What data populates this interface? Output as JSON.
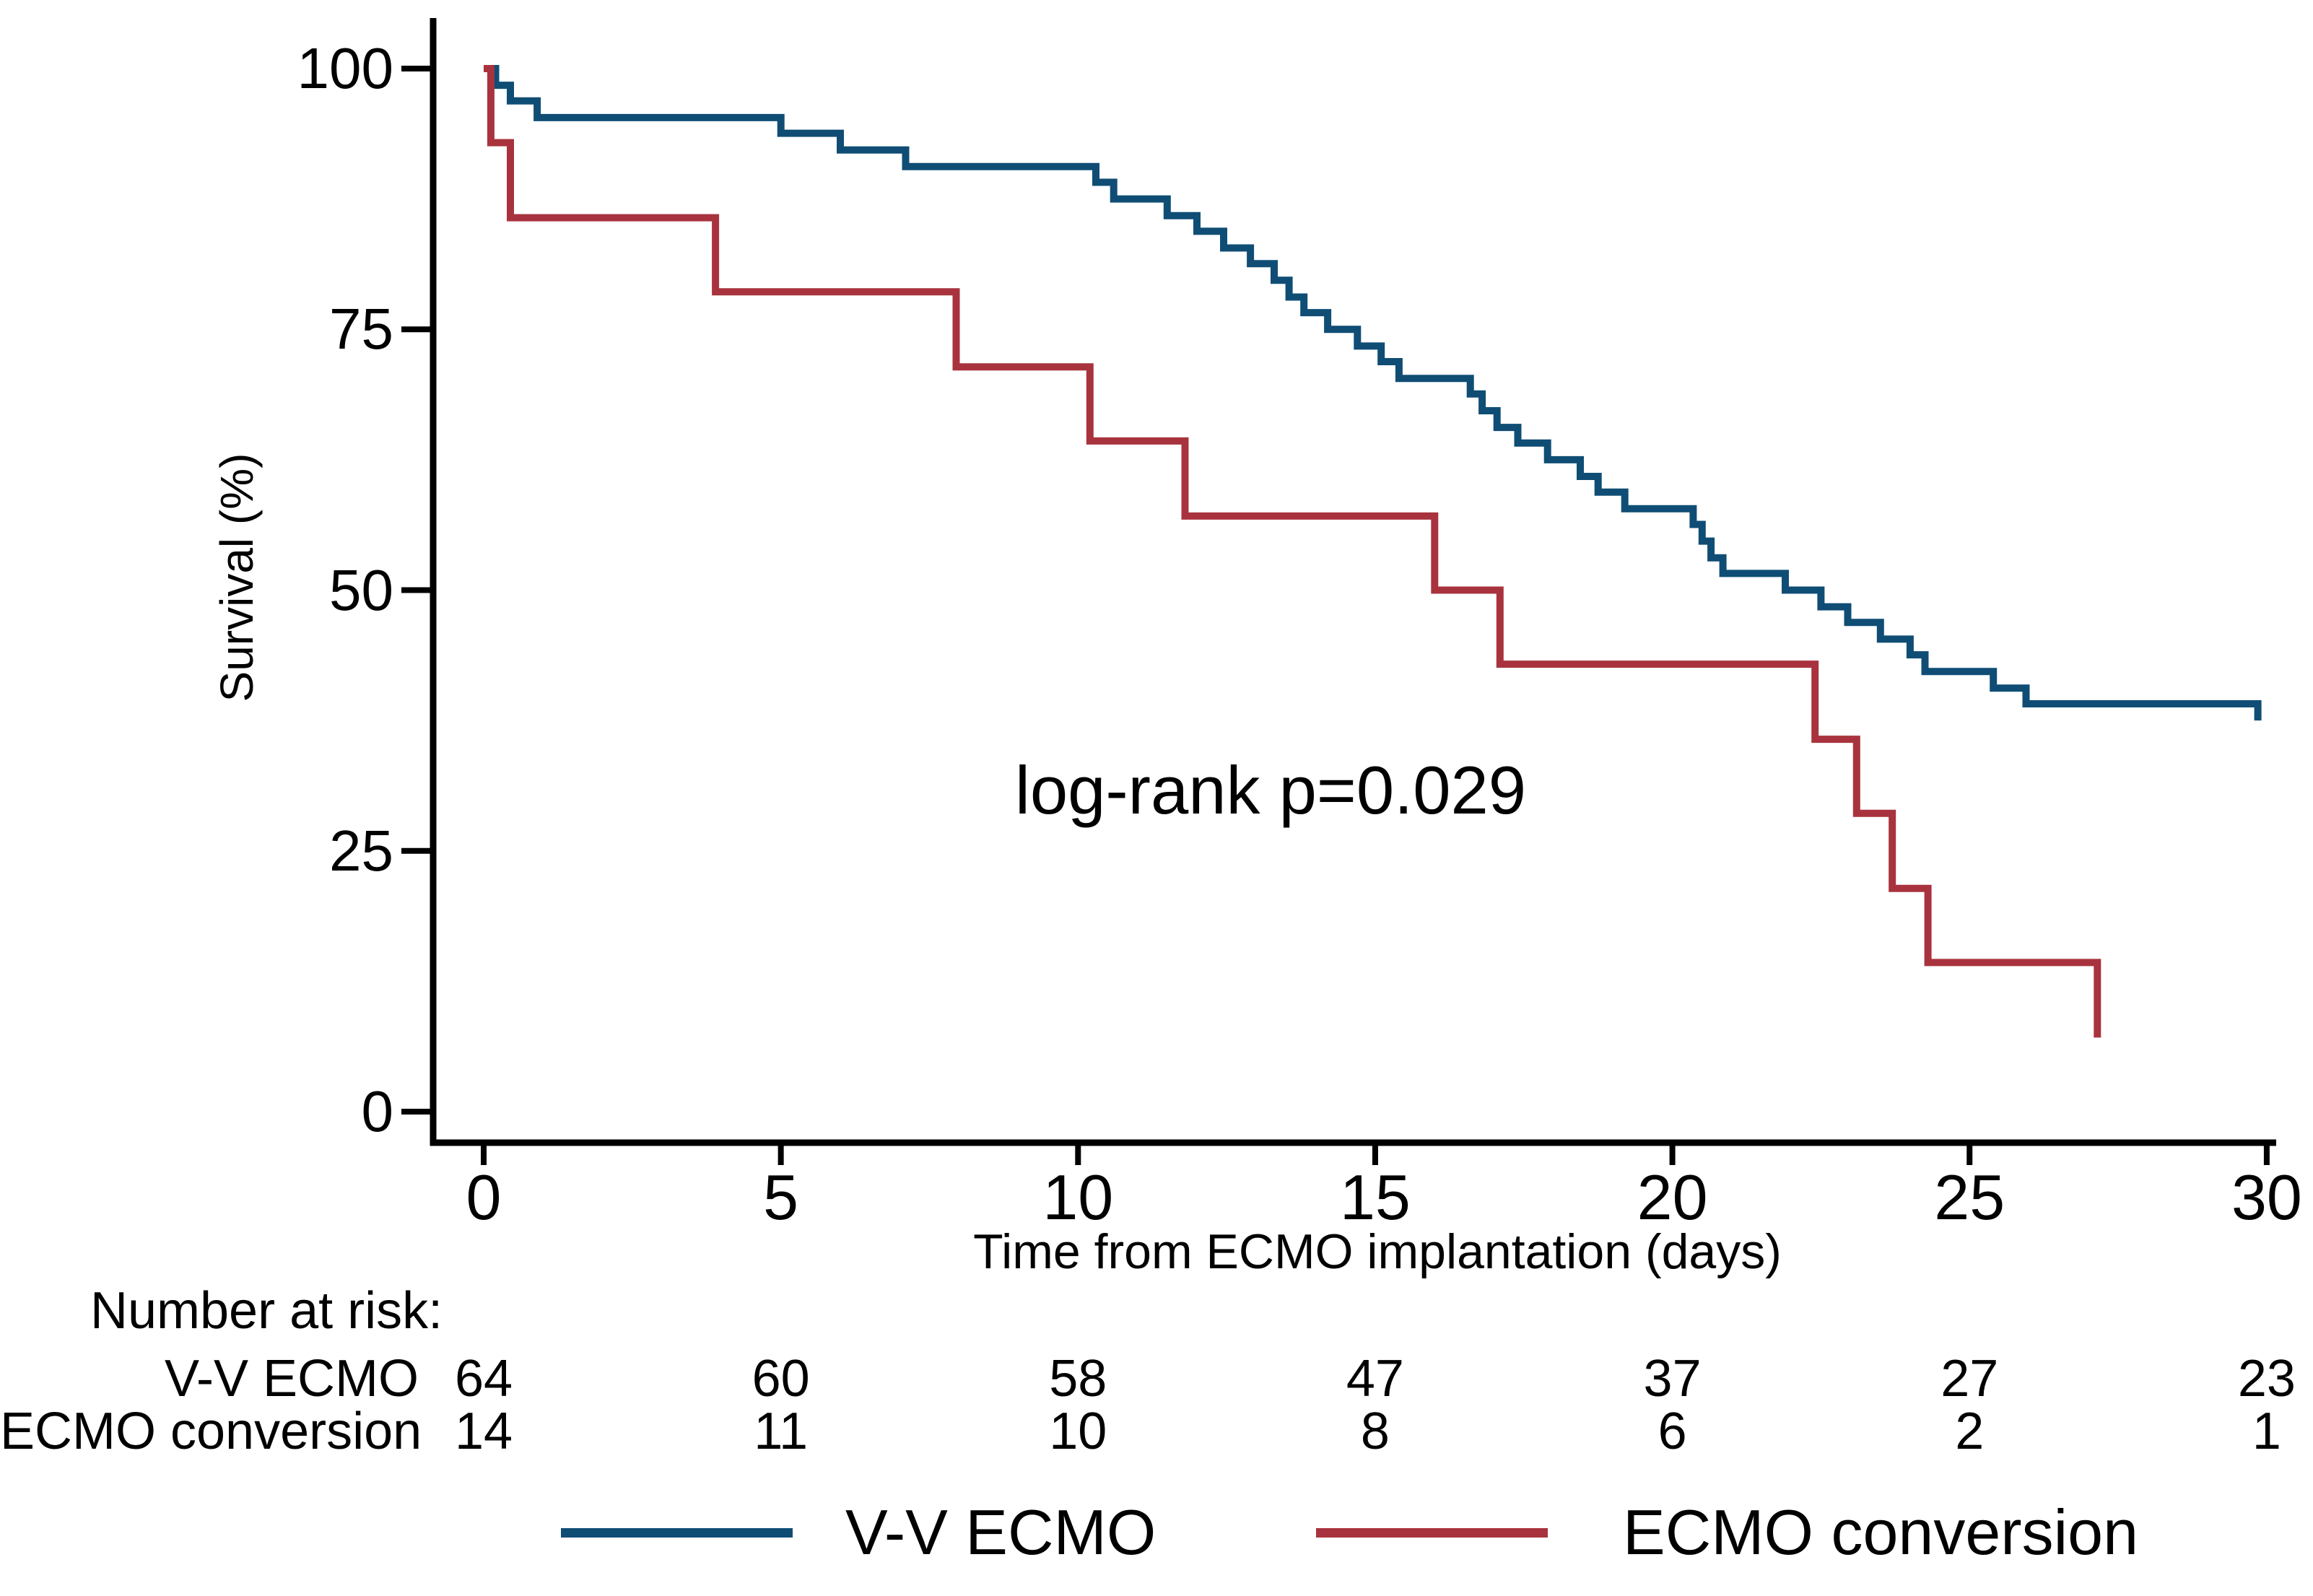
{
  "chart_data": {
    "type": "line",
    "step": true,
    "title": "",
    "xlabel": "Time from ECMO implantation (days)",
    "ylabel": "Survival (%)",
    "xlim": [
      0,
      30
    ],
    "ylim": [
      0,
      100
    ],
    "x_ticks": [
      0,
      5,
      10,
      15,
      20,
      25,
      30
    ],
    "y_ticks": [
      0,
      25,
      50,
      75,
      100
    ],
    "grid": false,
    "legend_position": "bottom",
    "annotation": "log-rank p=0.029",
    "axis_color": "#000000",
    "series": [
      {
        "name": "V-V ECMO",
        "color": "#0f4d75",
        "points": [
          [
            0,
            100
          ],
          [
            0.2,
            98.4
          ],
          [
            0.45,
            96.9
          ],
          [
            0.9,
            95.3
          ],
          [
            5,
            93.8
          ],
          [
            6,
            92.2
          ],
          [
            7.1,
            90.6
          ],
          [
            10.3,
            89.1
          ],
          [
            10.6,
            87.5
          ],
          [
            11.5,
            85.9
          ],
          [
            12,
            84.4
          ],
          [
            12.45,
            82.8
          ],
          [
            12.9,
            81.3
          ],
          [
            13.3,
            79.7
          ],
          [
            13.55,
            78.1
          ],
          [
            13.8,
            76.6
          ],
          [
            14.2,
            75
          ],
          [
            14.7,
            73.4
          ],
          [
            15.1,
            71.9
          ],
          [
            15.4,
            70.3
          ],
          [
            16.6,
            68.8
          ],
          [
            16.8,
            67.2
          ],
          [
            17.05,
            65.6
          ],
          [
            17.4,
            64.1
          ],
          [
            17.9,
            62.5
          ],
          [
            18.45,
            60.9
          ],
          [
            18.75,
            59.4
          ],
          [
            19.2,
            57.8
          ],
          [
            20.35,
            56.3
          ],
          [
            20.5,
            54.7
          ],
          [
            20.65,
            53.1
          ],
          [
            20.85,
            51.6
          ],
          [
            21.9,
            50
          ],
          [
            22.5,
            48.4
          ],
          [
            22.95,
            46.9
          ],
          [
            23.5,
            45.3
          ],
          [
            24,
            43.8
          ],
          [
            24.25,
            42.2
          ],
          [
            25.4,
            40.6
          ],
          [
            25.95,
            39.1
          ],
          [
            29.85,
            37.5
          ]
        ]
      },
      {
        "name": "ECMO conversion",
        "color": "#a8333e",
        "points": [
          [
            0,
            100
          ],
          [
            0.12,
            92.9
          ],
          [
            0.45,
            85.7
          ],
          [
            3.9,
            78.6
          ],
          [
            7.95,
            71.4
          ],
          [
            10.2,
            64.3
          ],
          [
            11.8,
            57.1
          ],
          [
            16,
            50
          ],
          [
            17.1,
            42.9
          ],
          [
            22.4,
            35.7
          ],
          [
            23.1,
            28.6
          ],
          [
            23.7,
            21.4
          ],
          [
            24.3,
            14.3
          ],
          [
            27.15,
            7.1
          ]
        ]
      }
    ]
  },
  "risk_table": {
    "header": "Number at risk:",
    "times": [
      0,
      5,
      10,
      15,
      20,
      25,
      30
    ],
    "rows": [
      {
        "label": "V-V ECMO",
        "counts": [
          "64",
          "60",
          "58",
          "47",
          "37",
          "27",
          "23"
        ]
      },
      {
        "label": "ECMO conversion",
        "counts": [
          "14",
          "11",
          "10",
          "8",
          "6",
          "2",
          "1"
        ]
      }
    ]
  },
  "legend": {
    "items": [
      {
        "label": "V-V ECMO",
        "color": "#0f4d75"
      },
      {
        "label": "ECMO conversion",
        "color": "#a8333e"
      }
    ]
  }
}
